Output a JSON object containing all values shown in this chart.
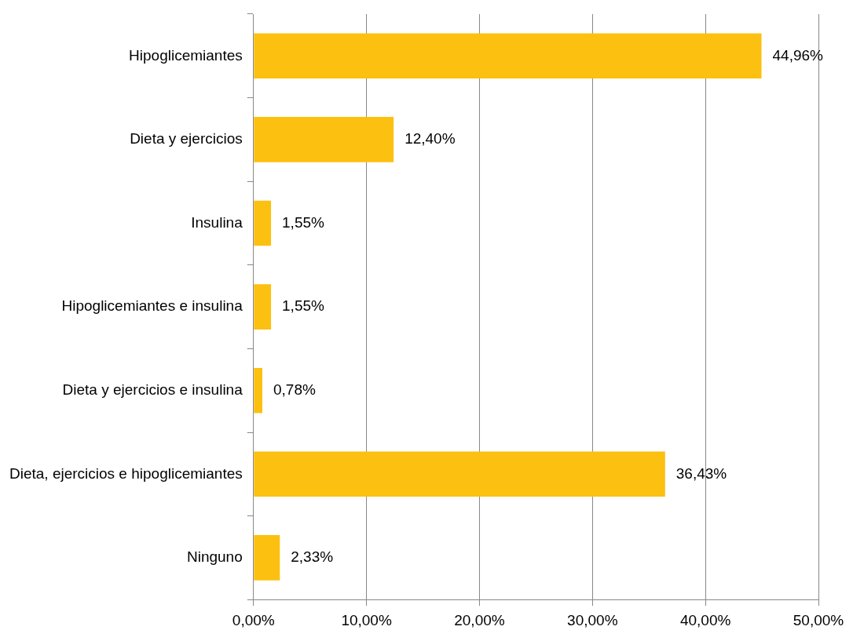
{
  "chart_data": {
    "type": "bar",
    "orientation": "horizontal",
    "categories": [
      "Hipoglicemiantes",
      "Dieta y ejercicios",
      "Insulina",
      "Hipoglicemiantes e insulina",
      "Dieta y ejercicios e insulina",
      "Dieta, ejercicios e hipoglicemiantes",
      "Ninguno"
    ],
    "values": [
      44.96,
      12.4,
      1.55,
      1.55,
      0.78,
      36.43,
      2.33
    ],
    "value_labels": [
      "44,96%",
      "12,40%",
      "1,55%",
      "1,55%",
      "0,78%",
      "36,43%",
      "2,33%"
    ],
    "color": "#fcc010",
    "xlim": [
      0,
      50
    ],
    "xticks": [
      {
        "value": 0,
        "label": "0,00%"
      },
      {
        "value": 10,
        "label": "10,00%"
      },
      {
        "value": 20,
        "label": "20,00%"
      },
      {
        "value": 30,
        "label": "30,00%"
      },
      {
        "value": 40,
        "label": "40,00%"
      },
      {
        "value": 50,
        "label": "50,00%"
      }
    ],
    "grid": "x",
    "legend": false
  }
}
